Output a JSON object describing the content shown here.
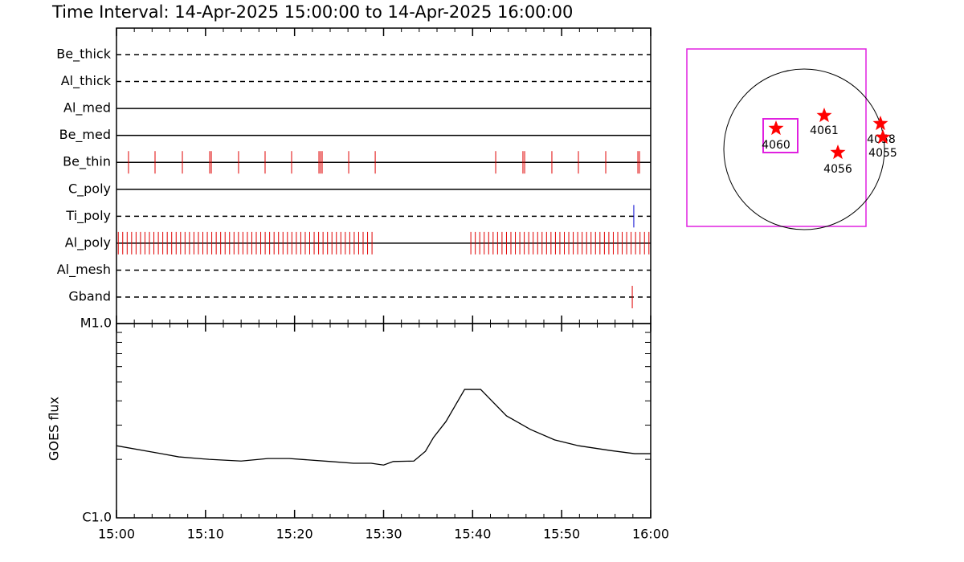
{
  "title": "Time Interval: 14-Apr-2025 15:00:00 to 14-Apr-2025 16:00:00",
  "chart_data": [
    {
      "type": "timeline",
      "xlim": [
        0,
        60
      ],
      "series": [
        {
          "name": "Be_thick",
          "style": "dashed",
          "color": "#e00000",
          "x": []
        },
        {
          "name": "Al_thick",
          "style": "dashed",
          "color": "#e00000",
          "x": []
        },
        {
          "name": "Al_med",
          "style": "solid",
          "color": "#e00000",
          "x": []
        },
        {
          "name": "Be_med",
          "style": "solid",
          "color": "#e00000",
          "x": []
        },
        {
          "name": "Be_thin",
          "style": "solid",
          "color": "#e00000",
          "x": [
            1.35,
            4.33,
            7.4,
            10.47,
            10.65,
            13.71,
            16.69,
            19.67,
            22.74,
            22.92,
            23.1,
            26.08,
            29.06,
            42.59,
            45.65,
            45.84,
            48.9,
            51.88,
            54.95,
            58.56,
            58.74
          ]
        },
        {
          "name": "C_poly",
          "style": "solid",
          "color": "#e00000",
          "x": []
        },
        {
          "name": "Ti_poly",
          "style": "dashed",
          "color": "#0000d0",
          "x": [
            58.1
          ]
        },
        {
          "name": "Al_poly",
          "style": "solid",
          "color": "#e00000",
          "x": [
            0.2,
            0.7,
            1.2,
            1.7,
            2.2,
            2.7,
            3.2,
            3.7,
            4.2,
            4.7,
            5.2,
            5.7,
            6.2,
            6.7,
            7.2,
            7.7,
            8.2,
            8.7,
            9.2,
            9.7,
            10.2,
            10.7,
            11.2,
            11.7,
            12.2,
            12.7,
            13.2,
            13.7,
            14.2,
            14.7,
            15.2,
            15.7,
            16.2,
            16.7,
            17.2,
            17.7,
            18.2,
            18.7,
            19.2,
            19.7,
            20.2,
            20.7,
            21.2,
            21.7,
            22.2,
            22.7,
            23.2,
            23.7,
            24.2,
            24.7,
            25.2,
            25.7,
            26.2,
            26.7,
            27.2,
            27.7,
            28.2,
            28.7,
            39.8,
            40.3,
            40.8,
            41.3,
            41.8,
            42.3,
            42.8,
            43.3,
            43.8,
            44.3,
            44.8,
            45.3,
            45.8,
            46.3,
            46.8,
            47.3,
            47.8,
            48.3,
            48.8,
            49.3,
            49.8,
            50.3,
            50.8,
            51.3,
            51.8,
            52.3,
            52.8,
            53.3,
            53.8,
            54.3,
            54.8,
            55.3,
            55.8,
            56.3,
            56.8,
            57.3,
            57.8,
            58.3,
            58.8,
            59.3,
            59.8
          ]
        },
        {
          "name": "Al_mesh",
          "style": "dashed",
          "color": "#e00000",
          "x": []
        },
        {
          "name": "Gband",
          "style": "dashed",
          "color": "#e00000",
          "x": [
            57.93
          ]
        }
      ]
    },
    {
      "type": "line",
      "ylabel": "GOES flux",
      "log_scale": true,
      "color": "#000000",
      "xlim": [
        0,
        60
      ],
      "xticks": [
        {
          "value": 0,
          "label": "15:00"
        },
        {
          "value": 10,
          "label": "15:10"
        },
        {
          "value": 20,
          "label": "15:20"
        },
        {
          "value": 30,
          "label": "15:30"
        },
        {
          "value": 40,
          "label": "15:40"
        },
        {
          "value": 50,
          "label": "15:50"
        },
        {
          "value": 60,
          "label": "16:00"
        }
      ],
      "xminor": [
        2,
        4,
        6,
        8,
        12,
        14,
        16,
        18,
        22,
        24,
        26,
        28,
        32,
        34,
        36,
        38,
        42,
        44,
        46,
        48,
        52,
        54,
        56,
        58
      ],
      "ylim": [
        1e-06,
        1e-05
      ],
      "yticks": [
        {
          "value": 1e-06,
          "label": "C1.0"
        },
        {
          "value": 1e-05,
          "label": "M1.0"
        }
      ],
      "yminor": [
        2e-06,
        3e-06,
        4e-06,
        5e-06,
        6e-06,
        7e-06,
        8e-06,
        9e-06
      ],
      "x": [
        0,
        5,
        7,
        10.4,
        14,
        17,
        19.4,
        24,
        26.6,
        28.6,
        30,
        31.1,
        33.4,
        34.7,
        35.6,
        37,
        39.1,
        40.9,
        43.8,
        46.5,
        49.2,
        51.9,
        55.5,
        58.2,
        60
      ],
      "values": [
        2.35e-06,
        2.14e-06,
        2.06e-06,
        2e-06,
        1.96e-06,
        2.02e-06,
        2.02e-06,
        1.95e-06,
        1.91e-06,
        1.91e-06,
        1.87e-06,
        1.95e-06,
        1.96e-06,
        2.2e-06,
        2.59e-06,
        3.13e-06,
        4.58e-06,
        4.58e-06,
        3.35e-06,
        2.85e-06,
        2.52e-06,
        2.35e-06,
        2.22e-06,
        2.14e-06,
        2.14e-06
      ]
    },
    {
      "type": "map",
      "regions": [
        "4060",
        "4061",
        "4056",
        "4058",
        "4055"
      ]
    }
  ]
}
